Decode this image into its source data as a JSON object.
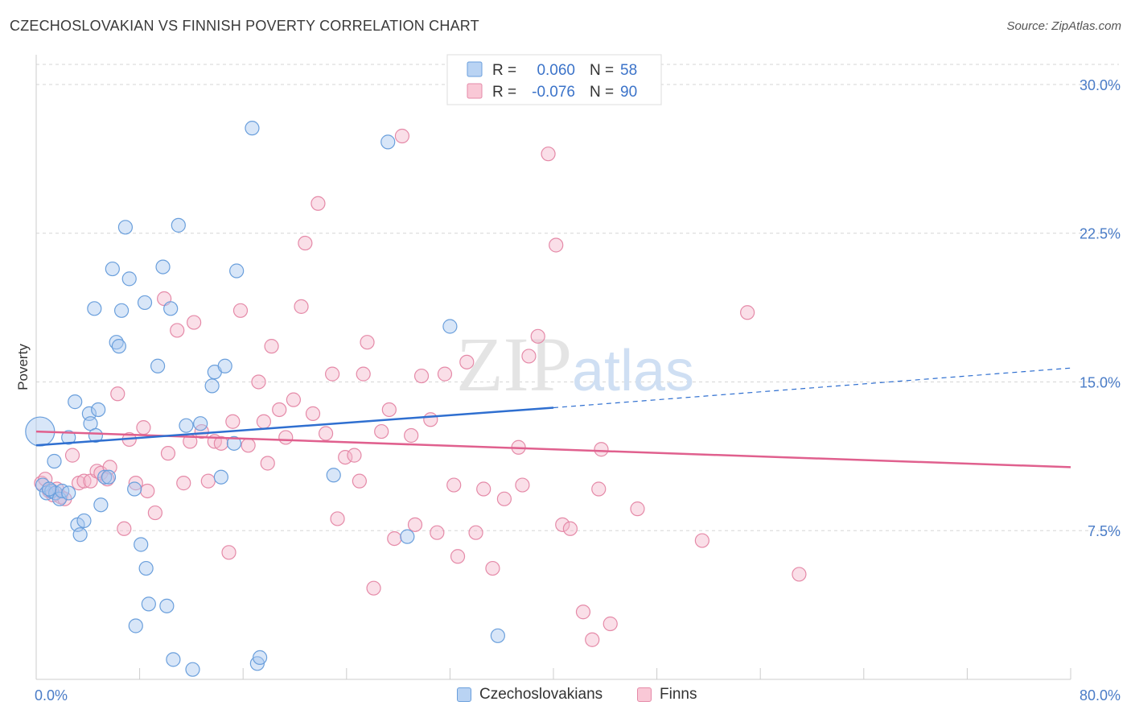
{
  "header": {
    "title": "CZECHOSLOVAKIAN VS FINNISH POVERTY CORRELATION CHART",
    "source": "Source: ZipAtlas.com"
  },
  "watermark": "ZIPatlas",
  "colors": {
    "blue_fill": "#a9c8f0",
    "blue_stroke": "#6a9fdc",
    "blue_line": "#2f6fd0",
    "pink_fill": "#f4b8cb",
    "pink_stroke": "#e58aa8",
    "pink_line": "#e0608e",
    "axis_text": "#4a7cc7",
    "grid": "#d6d6d6"
  },
  "legend": {
    "rows": [
      {
        "r_label": "R =",
        "r_value": "0.060",
        "n_label": "N =",
        "n_value": "58",
        "series": "blue"
      },
      {
        "r_label": "R =",
        "r_value": "-0.076",
        "n_label": "N =",
        "n_value": "90",
        "series": "pink"
      }
    ]
  },
  "bottom_legend": [
    {
      "label": "Czechoslovakians",
      "series": "blue"
    },
    {
      "label": "Finns",
      "series": "pink"
    }
  ],
  "chart_data": {
    "type": "scatter",
    "title": "CZECHOSLOVAKIAN VS FINNISH POVERTY CORRELATION CHART",
    "xlabel": "",
    "ylabel": "Poverty",
    "xlim": [
      0,
      80
    ],
    "ylim": [
      0,
      31.5
    ],
    "x_tick_labels": [
      "0.0%",
      "80.0%"
    ],
    "y_ticks": [
      7.5,
      15.0,
      22.5,
      30.0
    ],
    "y_tick_labels": [
      "7.5%",
      "15.0%",
      "22.5%",
      "30.0%"
    ],
    "grid": "horizontal dashed",
    "legend_position": "top-center",
    "series": [
      {
        "name": "Czechoslovakians",
        "color": "#a9c8f0",
        "trend": {
          "x0": 0,
          "y0": 11.8,
          "x1": 40,
          "y1": 13.7,
          "dashed_to_x": 80,
          "dashed_to_y": 15.7
        },
        "points": [
          [
            0.5,
            9.8
          ],
          [
            0.8,
            9.4
          ],
          [
            1.2,
            9.5
          ],
          [
            1.5,
            9.4
          ],
          [
            1.8,
            9.1
          ],
          [
            2.0,
            9.5
          ],
          [
            2.5,
            9.4
          ],
          [
            1.4,
            11.0
          ],
          [
            2.5,
            12.2
          ],
          [
            3.0,
            14.0
          ],
          [
            3.2,
            7.8
          ],
          [
            3.4,
            7.3
          ],
          [
            3.7,
            8.0
          ],
          [
            4.1,
            13.4
          ],
          [
            4.2,
            12.9
          ],
          [
            4.6,
            12.3
          ],
          [
            4.8,
            13.6
          ],
          [
            5.0,
            8.8
          ],
          [
            5.3,
            10.2
          ],
          [
            5.6,
            10.2
          ],
          [
            4.5,
            18.7
          ],
          [
            5.9,
            20.7
          ],
          [
            6.2,
            17.0
          ],
          [
            6.4,
            16.8
          ],
          [
            6.6,
            18.6
          ],
          [
            6.9,
            22.8
          ],
          [
            7.2,
            20.2
          ],
          [
            7.7,
            2.7
          ],
          [
            7.6,
            9.6
          ],
          [
            8.1,
            6.8
          ],
          [
            8.5,
            5.6
          ],
          [
            8.7,
            3.8
          ],
          [
            8.4,
            19.0
          ],
          [
            9.4,
            15.8
          ],
          [
            9.8,
            20.8
          ],
          [
            10.1,
            3.7
          ],
          [
            10.4,
            18.7
          ],
          [
            10.6,
            1.0
          ],
          [
            11.0,
            22.9
          ],
          [
            11.6,
            12.8
          ],
          [
            12.1,
            0.5
          ],
          [
            12.7,
            12.9
          ],
          [
            13.6,
            14.8
          ],
          [
            13.8,
            15.5
          ],
          [
            14.3,
            10.2
          ],
          [
            14.6,
            15.8
          ],
          [
            15.3,
            11.9
          ],
          [
            15.5,
            20.6
          ],
          [
            16.7,
            27.8
          ],
          [
            17.1,
            0.8
          ],
          [
            17.3,
            1.1
          ],
          [
            23.0,
            10.3
          ],
          [
            27.2,
            27.1
          ],
          [
            28.7,
            7.2
          ],
          [
            32.0,
            17.8
          ],
          [
            35.7,
            2.2
          ],
          [
            0.3,
            12.5
          ],
          [
            1.0,
            9.6
          ]
        ]
      },
      {
        "name": "Finns",
        "color": "#f4b8cb",
        "trend": {
          "x0": 0,
          "y0": 12.5,
          "x1": 80,
          "y1": 10.7
        },
        "points": [
          [
            0.4,
            9.9
          ],
          [
            0.7,
            10.1
          ],
          [
            1.0,
            9.5
          ],
          [
            1.3,
            9.3
          ],
          [
            1.6,
            9.6
          ],
          [
            1.9,
            9.2
          ],
          [
            2.2,
            9.1
          ],
          [
            2.8,
            11.3
          ],
          [
            3.3,
            9.9
          ],
          [
            3.7,
            10.0
          ],
          [
            4.2,
            10.0
          ],
          [
            4.7,
            10.5
          ],
          [
            5.0,
            10.4
          ],
          [
            5.5,
            10.1
          ],
          [
            5.7,
            10.7
          ],
          [
            6.3,
            14.4
          ],
          [
            6.8,
            7.6
          ],
          [
            7.2,
            12.1
          ],
          [
            7.7,
            9.9
          ],
          [
            8.3,
            12.7
          ],
          [
            8.6,
            9.5
          ],
          [
            9.2,
            8.4
          ],
          [
            9.9,
            19.2
          ],
          [
            10.2,
            11.4
          ],
          [
            10.9,
            17.6
          ],
          [
            11.4,
            9.9
          ],
          [
            11.9,
            12.0
          ],
          [
            12.2,
            18.0
          ],
          [
            12.8,
            12.5
          ],
          [
            13.3,
            10.0
          ],
          [
            13.8,
            12.0
          ],
          [
            14.3,
            11.9
          ],
          [
            14.9,
            6.4
          ],
          [
            15.2,
            13.0
          ],
          [
            15.8,
            18.6
          ],
          [
            16.4,
            11.8
          ],
          [
            17.2,
            15.0
          ],
          [
            17.6,
            13.0
          ],
          [
            17.9,
            10.9
          ],
          [
            18.2,
            16.8
          ],
          [
            18.8,
            13.6
          ],
          [
            19.3,
            12.2
          ],
          [
            19.9,
            14.1
          ],
          [
            20.5,
            18.8
          ],
          [
            20.8,
            22.0
          ],
          [
            21.4,
            13.4
          ],
          [
            21.8,
            24.0
          ],
          [
            22.4,
            12.4
          ],
          [
            22.9,
            15.4
          ],
          [
            23.3,
            8.1
          ],
          [
            23.9,
            11.2
          ],
          [
            24.6,
            11.3
          ],
          [
            25.0,
            10.0
          ],
          [
            25.3,
            15.4
          ],
          [
            25.6,
            17.0
          ],
          [
            26.1,
            4.6
          ],
          [
            26.7,
            12.5
          ],
          [
            27.3,
            13.6
          ],
          [
            27.7,
            7.1
          ],
          [
            28.3,
            27.4
          ],
          [
            29.0,
            12.3
          ],
          [
            29.3,
            7.8
          ],
          [
            29.8,
            15.3
          ],
          [
            30.5,
            13.1
          ],
          [
            31.0,
            7.4
          ],
          [
            31.6,
            15.4
          ],
          [
            32.3,
            9.8
          ],
          [
            32.6,
            6.2
          ],
          [
            33.3,
            16.0
          ],
          [
            34.0,
            7.4
          ],
          [
            34.6,
            9.6
          ],
          [
            35.3,
            5.6
          ],
          [
            36.2,
            9.1
          ],
          [
            37.3,
            11.7
          ],
          [
            37.6,
            9.8
          ],
          [
            38.1,
            16.3
          ],
          [
            38.8,
            17.3
          ],
          [
            39.6,
            26.5
          ],
          [
            40.2,
            21.9
          ],
          [
            40.7,
            7.8
          ],
          [
            41.3,
            7.6
          ],
          [
            42.3,
            3.4
          ],
          [
            43.0,
            2.0
          ],
          [
            43.5,
            9.6
          ],
          [
            43.7,
            11.6
          ],
          [
            44.4,
            2.8
          ],
          [
            46.5,
            8.6
          ],
          [
            51.5,
            7.0
          ],
          [
            55.0,
            18.5
          ],
          [
            59.0,
            5.3
          ]
        ]
      }
    ]
  }
}
